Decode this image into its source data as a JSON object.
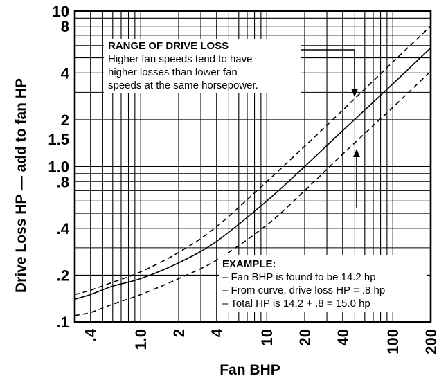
{
  "chart_data": {
    "type": "line",
    "xlabel": "Fan BHP",
    "ylabel": "Drive Loss HP — add to fan HP",
    "x_scale": "log",
    "y_scale": "log",
    "xlim": [
      0.3,
      200
    ],
    "ylim": [
      0.1,
      10
    ],
    "grid": true,
    "x_ticks": [
      {
        "value": 0.4,
        "label": ".4"
      },
      {
        "value": 1.0,
        "label": "1.0"
      },
      {
        "value": 2,
        "label": "2"
      },
      {
        "value": 4,
        "label": "4"
      },
      {
        "value": 10,
        "label": "10"
      },
      {
        "value": 20,
        "label": "20"
      },
      {
        "value": 40,
        "label": "40"
      },
      {
        "value": 100,
        "label": "100"
      },
      {
        "value": 200,
        "label": "200"
      }
    ],
    "y_ticks": [
      {
        "value": 0.1,
        "label": ".1"
      },
      {
        "value": 0.2,
        "label": ".2"
      },
      {
        "value": 0.4,
        "label": ".4"
      },
      {
        "value": 0.8,
        "label": ".8"
      },
      {
        "value": 1.0,
        "label": "1.0"
      },
      {
        "value": 1.5,
        "label": "1.5"
      },
      {
        "value": 2,
        "label": "2"
      },
      {
        "value": 4,
        "label": "4"
      },
      {
        "value": 8,
        "label": "8"
      },
      {
        "value": 10,
        "label": "10"
      }
    ],
    "series": [
      {
        "style": "solid",
        "x": [
          0.3,
          0.4,
          0.6,
          1.0,
          2,
          4,
          10,
          20,
          40,
          100,
          200
        ],
        "y": [
          0.14,
          0.15,
          0.17,
          0.19,
          0.24,
          0.33,
          0.6,
          1.0,
          1.7,
          3.4,
          5.8
        ]
      },
      {
        "style": "dashed",
        "x": [
          0.3,
          0.4,
          0.6,
          1.0,
          2,
          4,
          10,
          20,
          40,
          100,
          200
        ],
        "y": [
          0.15,
          0.16,
          0.18,
          0.21,
          0.28,
          0.41,
          0.8,
          1.35,
          2.3,
          4.7,
          8.0
        ]
      },
      {
        "style": "dashed",
        "x": [
          0.3,
          0.4,
          0.6,
          1.0,
          2,
          4,
          10,
          20,
          40,
          100,
          200
        ],
        "y": [
          0.11,
          0.115,
          0.13,
          0.15,
          0.19,
          0.25,
          0.42,
          0.7,
          1.2,
          2.4,
          4.1
        ]
      }
    ],
    "annotations": {
      "range_title": "RANGE OF DRIVE LOSS",
      "range_lines": [
        "Higher fan speeds tend to have",
        "higher losses than lower fan",
        "speeds at the same horsepower."
      ],
      "example_title": "EXAMPLE:",
      "example_lines": [
        "– Fan BHP is found to be 14.2 hp",
        "– From curve, drive loss HP = .8 hp",
        "– Total HP is 14.2 + .8 = 15.0 hp"
      ]
    }
  }
}
